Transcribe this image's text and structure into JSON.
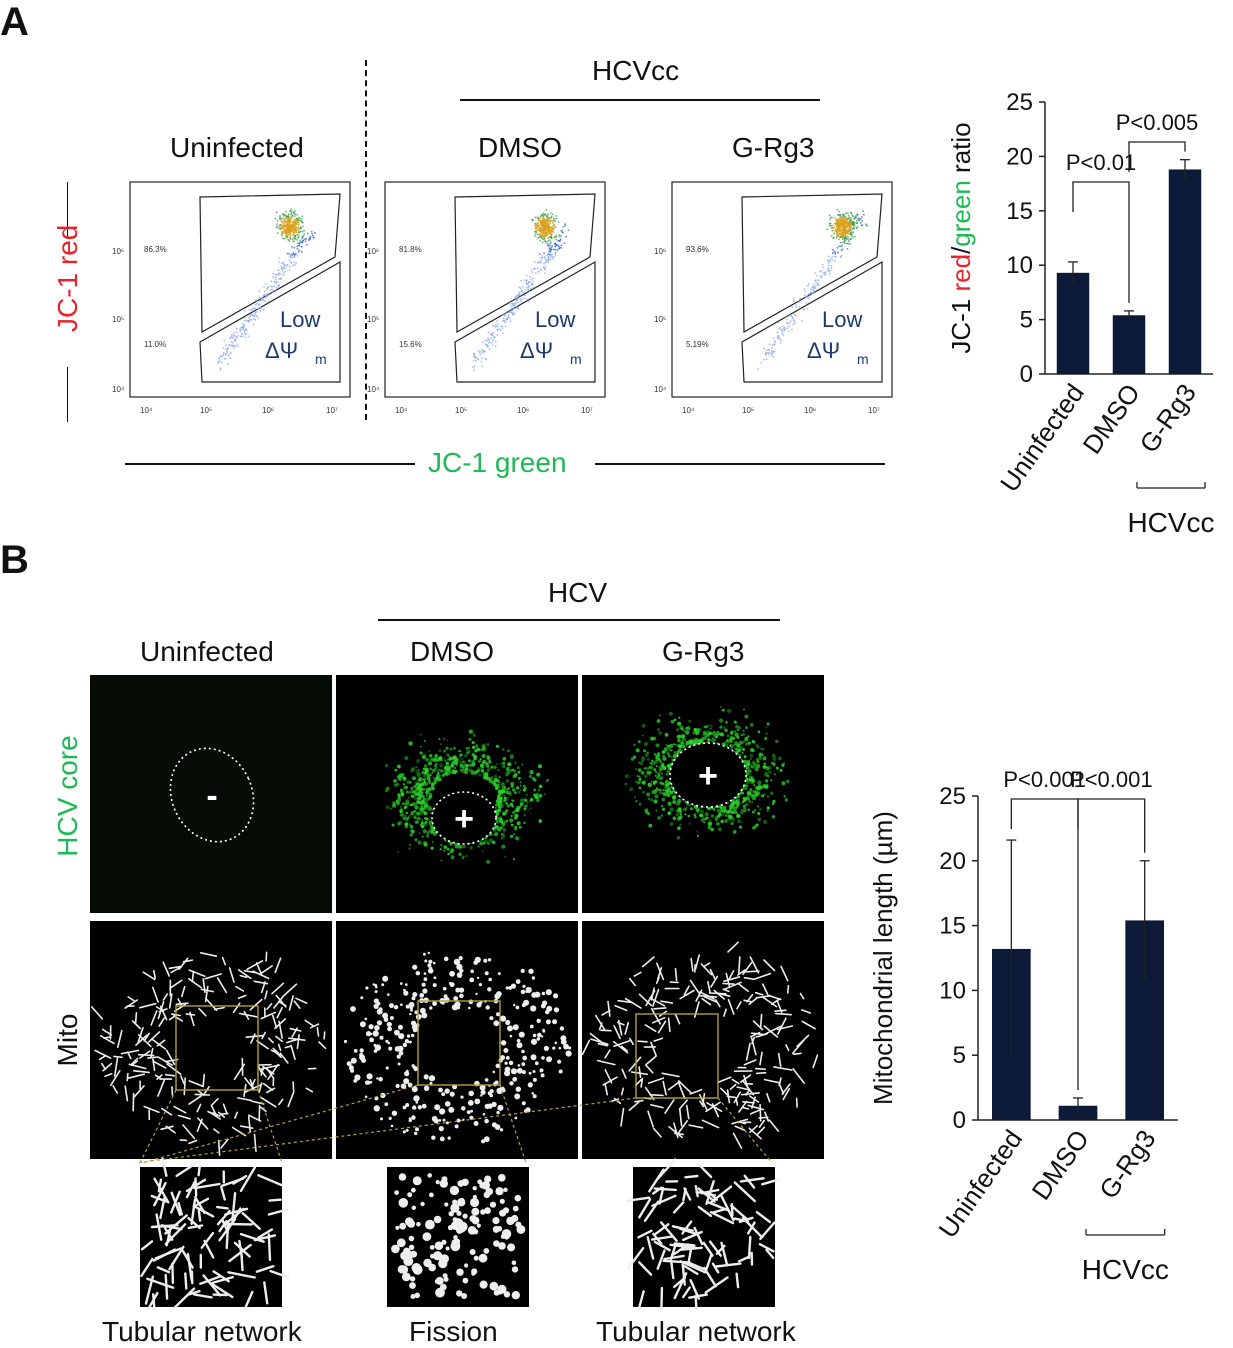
{
  "panel_a": {
    "letter": "A",
    "hcv_header": "HCVcc",
    "col_labels": [
      "Uninfected",
      "DMSO",
      "G-Rg3"
    ],
    "y_axis_label": "JC-1 red",
    "x_axis_label": "JC-1 green",
    "gate_label_line1": "Low",
    "gate_label_line2": "ΔΨ",
    "gate_label_sub": "m",
    "plots": [
      {
        "name": "Uninfected",
        "upper_pct": "86.3%",
        "lower_pct": "11.0%"
      },
      {
        "name": "DMSO",
        "upper_pct": "81.8%",
        "lower_pct": "15.6%"
      },
      {
        "name": "G-Rg3",
        "upper_pct": "93.6%",
        "lower_pct": "5.19%"
      }
    ],
    "y_ticks": [
      "10⁴",
      "10⁵",
      "10⁶"
    ],
    "x_ticks": [
      "10⁴",
      "10⁵",
      "10⁶",
      "10⁷"
    ]
  },
  "panel_b": {
    "letter": "B",
    "hcv_header": "HCV",
    "col_labels": [
      "Uninfected",
      "DMSO",
      "G-Rg3"
    ],
    "row_labels": [
      "HCV core",
      "Mito"
    ],
    "core_signs": [
      "-",
      "+",
      "+"
    ],
    "zoom_captions": [
      "Tubular network",
      "Fission",
      "Tubular network"
    ]
  },
  "colors": {
    "bar": "#0c1a38",
    "red_text": "#e8232a",
    "green_text": "#1db954",
    "gate_text": "#1f3a6e",
    "zoom_box": "#b8a13a"
  },
  "chart_data": [
    {
      "type": "bar",
      "categories": [
        "Uninfected",
        "DMSO",
        "G-Rg3"
      ],
      "values": [
        9.3,
        5.4,
        18.8
      ],
      "errors": [
        1.0,
        0.4,
        0.9
      ],
      "ylabel_parts": [
        {
          "text": "JC-1 ",
          "color": "#111111"
        },
        {
          "text": "red",
          "color": "#e8232a"
        },
        {
          "text": "/",
          "color": "#111111"
        },
        {
          "text": "green",
          "color": "#1db954"
        },
        {
          "text": " ratio",
          "color": "#111111"
        }
      ],
      "ylim": [
        0,
        25
      ],
      "yticks": [
        "0",
        "5",
        "10",
        "15",
        "20",
        "25"
      ],
      "group_label": "HCVcc",
      "annotations": [
        {
          "text": "P<0.01",
          "from": 0,
          "to": 1
        },
        {
          "text": "P<0.005",
          "from": 1,
          "to": 2
        }
      ]
    },
    {
      "type": "bar",
      "categories": [
        "Uninfected",
        "DMSO",
        "G-Rg3"
      ],
      "values": [
        13.2,
        1.1,
        15.4
      ],
      "errors": [
        8.4,
        0.6,
        4.6
      ],
      "ylabel": "Mitochondrial length (µm)",
      "ylim": [
        0,
        25
      ],
      "yticks": [
        "0",
        "5",
        "10",
        "15",
        "20",
        "25"
      ],
      "group_label": "HCVcc",
      "annotations": [
        {
          "text": "P<0.001",
          "from": 0,
          "to": 1
        },
        {
          "text": "P<0.001",
          "from": 1,
          "to": 2
        }
      ]
    }
  ]
}
